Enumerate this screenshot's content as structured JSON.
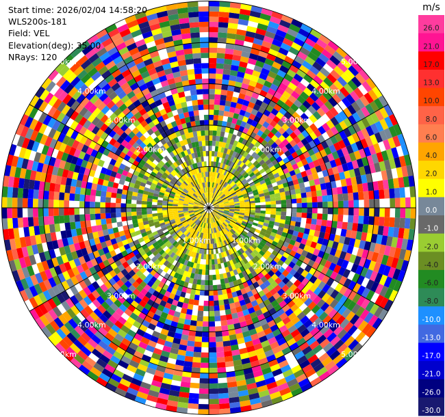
{
  "info": {
    "start_time": "Start time: 2026/02/04 14:58:20",
    "instrument": "WLS200s-181",
    "field": "Field: VEL",
    "elevation": "Elevation(deg): 35.00",
    "nrays": "NRays: 120"
  },
  "colorbar": {
    "unit": "m/s",
    "bands": [
      {
        "label": "26.0",
        "color": "#ff3c9e"
      },
      {
        "label": "21.0",
        "color": "#ff1493"
      },
      {
        "label": "17.0",
        "color": "#ff0000"
      },
      {
        "label": "13.0",
        "color": "#ff3030"
      },
      {
        "label": "10.0",
        "color": "#ff4500"
      },
      {
        "label": "8.0",
        "color": "#ff6347"
      },
      {
        "label": "6.0",
        "color": "#ff7f50"
      },
      {
        "label": "4.0",
        "color": "#ffa500"
      },
      {
        "label": "2.0",
        "color": "#ffd700"
      },
      {
        "label": "1.0",
        "color": "#ffff00"
      },
      {
        "label": "0.0",
        "color": "#778899"
      },
      {
        "label": "-1.0",
        "color": "#696969"
      },
      {
        "label": "-2.0",
        "color": "#9acd32"
      },
      {
        "label": "-4.0",
        "color": "#6b8e23"
      },
      {
        "label": "-6.0",
        "color": "#228b22"
      },
      {
        "label": "-8.0",
        "color": "#2e8b57"
      },
      {
        "label": "-10.0",
        "color": "#1e90ff"
      },
      {
        "label": "-13.0",
        "color": "#4169e1"
      },
      {
        "label": "-17.0",
        "color": "#0000ff"
      },
      {
        "label": "-21.0",
        "color": "#0000cd"
      },
      {
        "label": "-26.0",
        "color": "#000080"
      },
      {
        "label": "-30.0",
        "color": "#191970"
      }
    ]
  },
  "chart_data": {
    "type": "heatmap",
    "projection": "polar (PPI)",
    "field": "VEL",
    "units": "m/s",
    "n_rays": 120,
    "range_rings_km": [
      1,
      2,
      3,
      4,
      5
    ],
    "ring_labels": [
      "1.00km",
      "2.00km",
      "3.00km",
      "4.00km",
      "5.00km"
    ],
    "vmin": -30.0,
    "vmax": 26.0,
    "pattern": [
      {
        "range_km": [
          0,
          1.0
        ],
        "description": "mostly positive (yellow 1-2 m/s) with some near-zero gray"
      },
      {
        "range_km": [
          1.0,
          2.0
        ],
        "description": "mix of green (-2 to -6 m/s), gray and yellow"
      },
      {
        "range_km": [
          2.0,
          5.0
        ],
        "description": "random noise across full color scale"
      }
    ]
  }
}
